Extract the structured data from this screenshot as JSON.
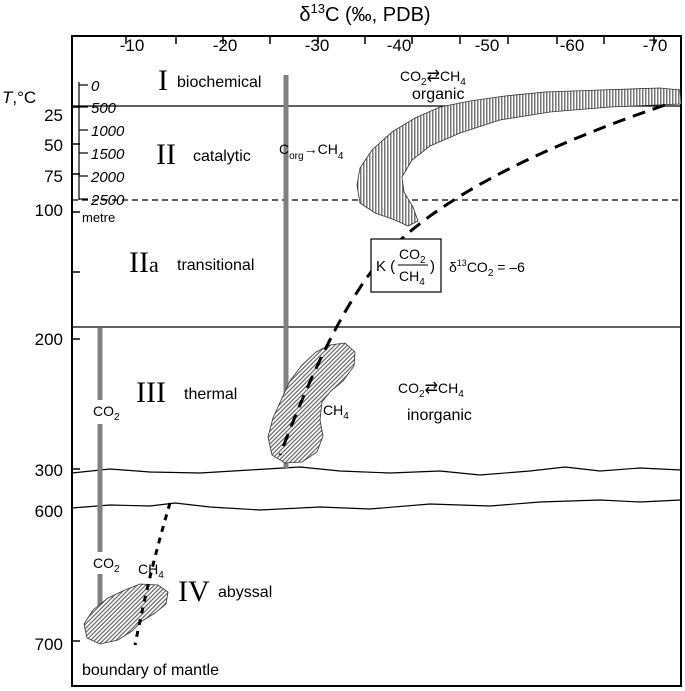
{
  "axis": {
    "top_title": "δ13C (‰, PDB)",
    "top_title_delta": "δ",
    "top_title_sup": "13",
    "top_title_rest": "C (‰, PDB)",
    "top_ticks": [
      "-10",
      "-20",
      "-30",
      "-40",
      "-50",
      "-60",
      "-70"
    ],
    "left_title": "T,°C",
    "left_title_T": "T",
    "left_title_rest": ",°C",
    "left_ticks": [
      "25",
      "50",
      "75",
      "100",
      "200",
      "300",
      "600",
      "700"
    ],
    "depth_ticks": [
      "0",
      "500",
      "1000",
      "1500",
      "2000",
      "2500"
    ],
    "depth_unit": "metre"
  },
  "zones": {
    "z1": {
      "numeral": "I",
      "name": "biochemical"
    },
    "z2": {
      "numeral": "II",
      "name": "catalytic"
    },
    "z2a": {
      "numeral": "IIa",
      "numeral_main": "II",
      "numeral_sub": "a",
      "name": "transitional"
    },
    "z3": {
      "numeral": "III",
      "name": "thermal"
    },
    "z4": {
      "numeral": "IV",
      "name": "abyssal"
    }
  },
  "labels": {
    "organic_eq": {
      "left": "CO2",
      "left_base": "CO",
      "left_sub": "2",
      "arrow": "⇄",
      "right": "CH4",
      "right_base": "CH",
      "right_sub": "4"
    },
    "organic": "organic",
    "inorganic_eq": {
      "left": "CO2",
      "left_base": "CO",
      "left_sub": "2",
      "arrow": "⇄",
      "right": "CH4",
      "right_base": "CH",
      "right_sub": "4"
    },
    "inorganic": "inorganic",
    "corg": {
      "base": "C",
      "sub": "org",
      "arrow": "→",
      "prod_base": "CH",
      "prod_sub": "4"
    },
    "k_box": {
      "k": "K (",
      "num_base": "CO",
      "num_sub": "2",
      "den_base": "CH",
      "den_sub": "4",
      "close": ")"
    },
    "d13co2": {
      "delta": "δ",
      "sup": "13",
      "base": "CO",
      "sub": "2",
      "value": " = –6"
    },
    "co2_mid": {
      "base": "CO",
      "sub": "2"
    },
    "ch4_mid": {
      "base": "CH",
      "sub": "4"
    },
    "co2_low": {
      "base": "CO",
      "sub": "2"
    },
    "ch4_low": {
      "base": "CH",
      "sub": "4"
    },
    "boundary": "boundary of mantle"
  },
  "colors": {
    "frame": "#000000",
    "vertical_lines": "#808080",
    "hatch": "#555555"
  }
}
